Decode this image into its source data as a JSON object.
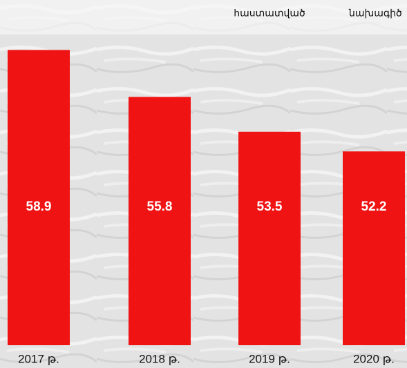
{
  "chart_data": {
    "type": "bar",
    "annotations": [
      "հաստատված",
      "նախագիծ"
    ],
    "categories": [
      "2017 թ.",
      "2018 թ.",
      "2019 թ.",
      "2020 թ."
    ],
    "values": [
      58.9,
      55.8,
      53.5,
      52.2
    ],
    "color": "#f01313",
    "ylim": [
      39.4,
      62.2
    ]
  }
}
